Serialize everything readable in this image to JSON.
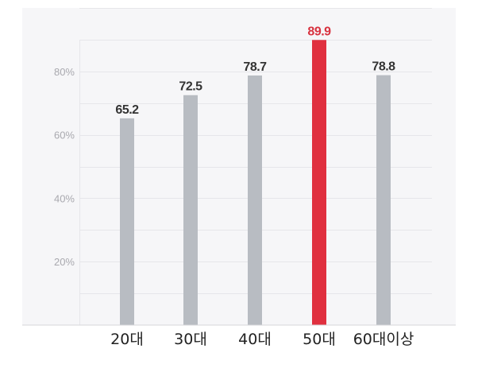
{
  "chart_data": {
    "type": "bar",
    "categories": [
      "20대",
      "30대",
      "40대",
      "50대",
      "60대이상"
    ],
    "values": [
      65.2,
      72.5,
      78.7,
      89.9,
      78.8
    ],
    "value_labels": [
      "65.2",
      "72.5",
      "78.7",
      "89.9",
      "78.8"
    ],
    "highlight_index": 3,
    "y_ticks": [
      {
        "value": 20,
        "label": "20%"
      },
      {
        "value": 40,
        "label": "40%"
      },
      {
        "value": 60,
        "label": "60%"
      },
      {
        "value": 80,
        "label": "80%"
      }
    ],
    "ylim": [
      0,
      100
    ],
    "grid": true,
    "title": "",
    "xlabel": "",
    "ylabel": "",
    "colors": {
      "bar": "#b8bcc2",
      "bar_highlight": "#e0303f",
      "label": "#333333",
      "label_highlight": "#d8323f"
    }
  }
}
